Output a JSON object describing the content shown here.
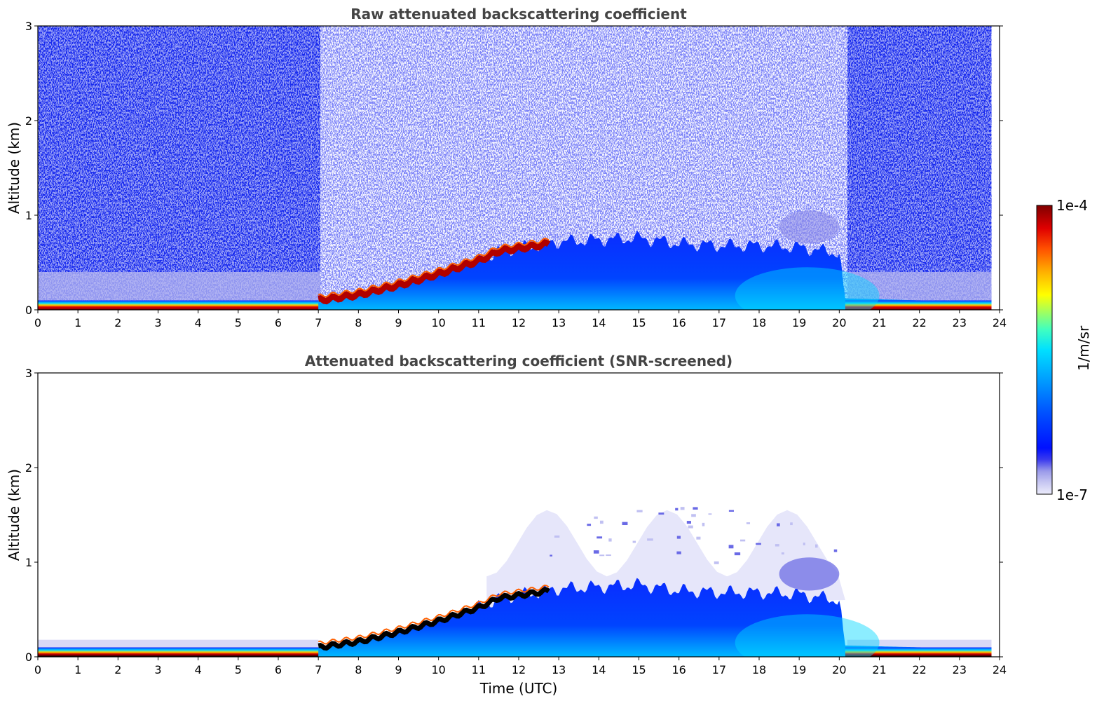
{
  "chart_data": [
    {
      "type": "heatmap",
      "title": "Raw attenuated backscattering coefficient",
      "ylabel": "Altitude (km)",
      "xlabel": "",
      "xlim": [
        0,
        24
      ],
      "ylim": [
        0,
        3
      ],
      "xticks": [
        "0",
        "1",
        "2",
        "3",
        "4",
        "5",
        "6",
        "7",
        "8",
        "9",
        "10",
        "11",
        "12",
        "13",
        "14",
        "15",
        "16",
        "17",
        "18",
        "19",
        "20",
        "21",
        "22",
        "23",
        "24"
      ],
      "yticks": [
        "0",
        "1",
        "2",
        "3"
      ],
      "data_end_hour": 23.8,
      "boundary_layer_top_km": [
        {
          "x": 0,
          "y": 0.08
        },
        {
          "x": 6.5,
          "y": 0.08
        },
        {
          "x": 7,
          "y": 0.1
        },
        {
          "x": 8,
          "y": 0.16
        },
        {
          "x": 9,
          "y": 0.26
        },
        {
          "x": 10,
          "y": 0.38
        },
        {
          "x": 11,
          "y": 0.52
        },
        {
          "x": 11.5,
          "y": 0.62
        },
        {
          "x": 12.5,
          "y": 0.68
        },
        {
          "x": 13,
          "y": 0.72
        },
        {
          "x": 14,
          "y": 0.74
        },
        {
          "x": 15,
          "y": 0.76
        },
        {
          "x": 16,
          "y": 0.7
        },
        {
          "x": 17,
          "y": 0.68
        },
        {
          "x": 18,
          "y": 0.68
        },
        {
          "x": 19,
          "y": 0.66
        },
        {
          "x": 20,
          "y": 0.6
        },
        {
          "x": 20.15,
          "y": 0.12
        },
        {
          "x": 24,
          "y": 0.08
        }
      ],
      "residual_layer": {
        "x_start": 18.5,
        "x_end": 20.0,
        "y_bottom": 0.7,
        "y_top": 1.05
      }
    },
    {
      "type": "heatmap",
      "title": "Attenuated backscattering coefficient (SNR-screened)",
      "ylabel": "Altitude (km)",
      "xlabel": "Time (UTC)",
      "xlim": [
        0,
        24
      ],
      "ylim": [
        0,
        3
      ],
      "xticks": [
        "0",
        "1",
        "2",
        "3",
        "4",
        "5",
        "6",
        "7",
        "8",
        "9",
        "10",
        "11",
        "12",
        "13",
        "14",
        "15",
        "16",
        "17",
        "18",
        "19",
        "20",
        "21",
        "22",
        "23",
        "24"
      ],
      "yticks": [
        "0",
        "1",
        "2",
        "3"
      ],
      "data_end_hour": 23.8,
      "screened_region_top_km": 1.6
    }
  ],
  "colorbar": {
    "label": "1/m/sr",
    "max_label": "1e-4",
    "min_label": "1e-7",
    "scale": "log",
    "range": [
      1e-07,
      0.0001
    ],
    "colormap": [
      "#e8e8fa",
      "#c8c8f2",
      "#9a9aea",
      "#3a3aee",
      "#0010ff",
      "#0050ff",
      "#00a0ff",
      "#00e0ff",
      "#40ffc0",
      "#a0ff60",
      "#ffff00",
      "#ffb000",
      "#ff5000",
      "#e00000",
      "#800000"
    ]
  }
}
